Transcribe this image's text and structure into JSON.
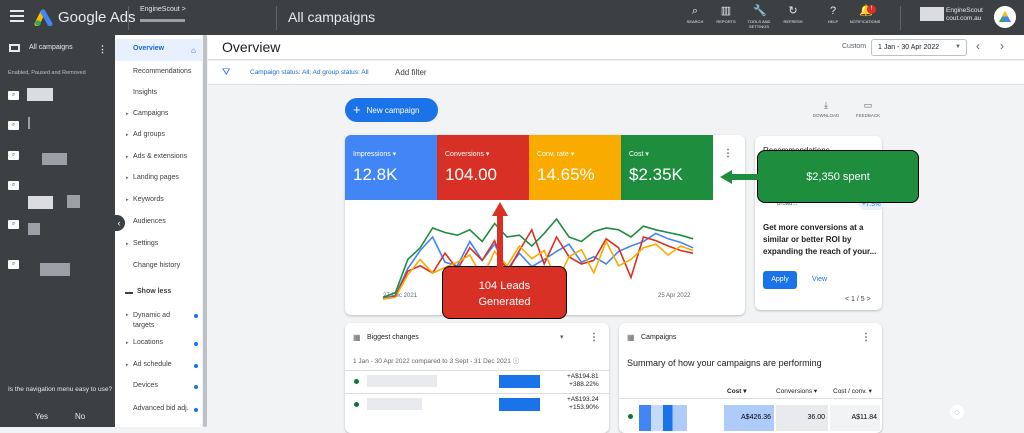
{
  "topbar": {
    "brand": "Google Ads",
    "account_name": "EngineScout",
    "account_chevron": ">",
    "page_title": "All campaigns",
    "tools": [
      {
        "label": "SEARCH",
        "icon": "search-icon",
        "glyph": "⌕"
      },
      {
        "label": "REPORTS",
        "icon": "reports-icon",
        "glyph": "▥"
      },
      {
        "label": "TOOLS AND SETTINGS",
        "icon": "wrench-icon",
        "glyph": "🔧"
      },
      {
        "label": "REFRESH",
        "icon": "refresh-icon",
        "glyph": "↻"
      },
      {
        "label": "HELP",
        "icon": "help-icon",
        "glyph": "?"
      },
      {
        "label": "NOTIFICATIONS",
        "icon": "bell-icon",
        "glyph": "🔔",
        "badge": "!"
      }
    ],
    "profile_line1": "EngineScout",
    "profile_line2": "cout.com.au"
  },
  "left_nav": {
    "all_campaigns": "All campaigns",
    "filter_text": "Enabled, Paused and Removed",
    "question": "Is the navigation menu easy to use?",
    "yes": "Yes",
    "no": "No",
    "collapse_glyph": "‹"
  },
  "side_nav": {
    "items": [
      {
        "label": "Overview",
        "caret": false,
        "active": true
      },
      {
        "label": "Recommendations",
        "caret": false
      },
      {
        "label": "Insights",
        "caret": false
      },
      {
        "label": "Campaigns",
        "caret": true
      },
      {
        "label": "Ad groups",
        "caret": true
      },
      {
        "label": "Ads & extensions",
        "caret": true
      },
      {
        "label": "Landing pages",
        "caret": true
      },
      {
        "label": "Keywords",
        "caret": true
      },
      {
        "label": "Audiences",
        "caret": false
      },
      {
        "label": "Settings",
        "caret": true
      },
      {
        "label": "Change history",
        "caret": false
      },
      {
        "label": "Show less",
        "caret": false
      },
      {
        "label": "Dynamic ad targets",
        "caret": true,
        "dot": true
      },
      {
        "label": "Locations",
        "caret": true,
        "dot": true
      },
      {
        "label": "Ad schedule",
        "caret": true,
        "dot": true
      },
      {
        "label": "Devices",
        "caret": false,
        "dot": true
      },
      {
        "label": "Advanced bid adj.",
        "caret": false,
        "dot": true
      }
    ]
  },
  "overview": {
    "title": "Overview",
    "custom_label": "Custom",
    "date_range": "1 Jan - 30 Apr 2022",
    "filter_chip": "Campaign status: All; Ad group status: All",
    "add_filter": "Add filter",
    "new_campaign": "New campaign",
    "download": "DOWNLOAD",
    "feedback": "FEEDBACK"
  },
  "metrics": [
    {
      "label": "Impressions",
      "value": "12.8K",
      "color": "#4285f4"
    },
    {
      "label": "Conversions",
      "value": "104.00",
      "color": "#d93025"
    },
    {
      "label": "Conv. rate",
      "value": "14.65%",
      "color": "#f9ab00"
    },
    {
      "label": "Cost",
      "value": "$2.35K",
      "color": "#1e8e3e"
    }
  ],
  "chart_data": {
    "type": "line",
    "x_start_label": "27 Dec 2021",
    "x_end_label": "25 Apr 2022",
    "series": [
      {
        "color": "#4285f4",
        "values": [
          2,
          5,
          35,
          55,
          70,
          42,
          38,
          65,
          44,
          62,
          34,
          52,
          37,
          45,
          54,
          62,
          42,
          48,
          40,
          54,
          60,
          65,
          74,
          68,
          64,
          58
        ]
      },
      {
        "color": "#d93025",
        "values": [
          1,
          4,
          32,
          38,
          30,
          52,
          34,
          58,
          44,
          66,
          30,
          55,
          78,
          40,
          70,
          48,
          40,
          44,
          68,
          58,
          25,
          70,
          66,
          60,
          55,
          52
        ]
      },
      {
        "color": "#f9ab00",
        "values": [
          1,
          3,
          28,
          45,
          30,
          36,
          42,
          50,
          25,
          54,
          38,
          60,
          46,
          55,
          20,
          48,
          56,
          30,
          65,
          38,
          45,
          58,
          62,
          50,
          60,
          55
        ]
      },
      {
        "color": "#1e8e3e",
        "values": [
          3,
          8,
          45,
          58,
          80,
          75,
          72,
          78,
          65,
          85,
          70,
          72,
          60,
          74,
          90,
          70,
          65,
          76,
          80,
          78,
          70,
          82,
          78,
          75,
          72,
          68
        ]
      }
    ]
  },
  "annotations": {
    "red": "104 Leads\nGenerated",
    "green": "$2,350 spent"
  },
  "reco": {
    "title": "Recommendations",
    "pill_text": "Upgrade your existing keywords to broad...",
    "pct": "+7.5%",
    "body": "Get more conversions at a similar or better ROI by expanding the reach of your...",
    "apply": "Apply",
    "view": "View",
    "pager": "< 1 / 5 >"
  },
  "biggest_changes": {
    "title": "Biggest changes",
    "subtitle": "1 Jan - 30 Apr 2022 compared to 3 Sept - 31 Dec 2021 ⓘ",
    "rows": [
      {
        "amount": "+A$194.81",
        "pct": "+388.22%"
      },
      {
        "amount": "+A$193.24",
        "pct": "+153.90%"
      }
    ]
  },
  "campaigns_card": {
    "title": "Campaigns",
    "summary": "Summary of how your campaigns are performing",
    "cols": [
      "Cost ▾",
      "Conversions ▾",
      "Cost / conv. ▾"
    ],
    "row": {
      "cost": "A$426.36",
      "conversions": "36.00",
      "cost_conv": "A$11.84"
    }
  }
}
